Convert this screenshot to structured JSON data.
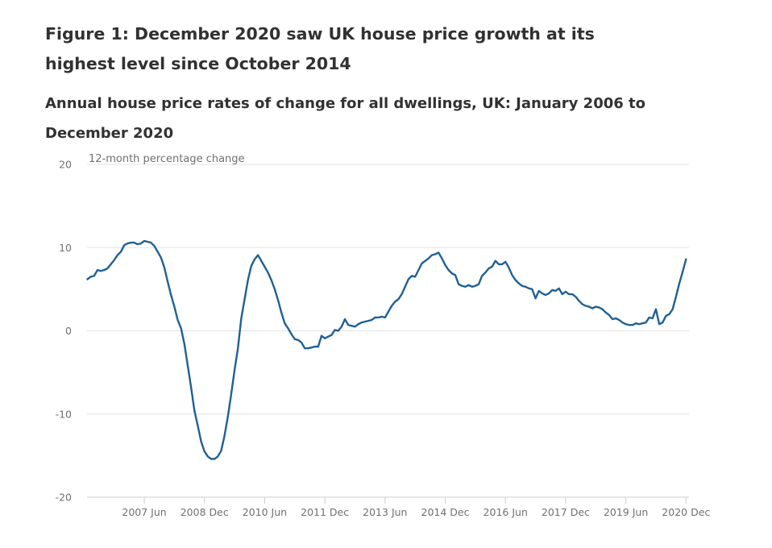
{
  "title": "Figure 1: December 2020 saw UK house price growth at its highest level since October 2014",
  "subtitle": "Annual house price rates of change for all dwellings, UK: January 2006 to December 2020",
  "colors": {
    "line": "#206095",
    "grid": "#e2e2e3",
    "axis": "#ccccd6",
    "text": "#323132",
    "tick_text": "#707071"
  },
  "chart_data": {
    "type": "line",
    "title": "Annual house price rates of change for all dwellings, UK: January 2006 to December 2020",
    "xlabel": "",
    "ylabel": "12-month percentage change",
    "x_start": "2006 Jan",
    "x_end": "2020 Dec",
    "x_frequency": "monthly",
    "x_ticks": [
      "2007 Jun",
      "2008 Dec",
      "2010 Jun",
      "2011 Dec",
      "2013 Jun",
      "2014 Dec",
      "2016 Jun",
      "2017 Dec",
      "2019 Jun",
      "2020 Dec"
    ],
    "x_tick_month_index": [
      17,
      35,
      53,
      71,
      89,
      107,
      125,
      143,
      161,
      179
    ],
    "y_ticks": [
      20,
      10,
      0,
      -10,
      -20
    ],
    "y_tick_labels": [
      "20",
      "10",
      "0",
      "-10",
      "-20"
    ],
    "ylim": [
      -20,
      20
    ],
    "grid": true,
    "legend": "none",
    "series": [
      {
        "name": "UK annual house price rate of change",
        "values": [
          6.2,
          6.5,
          6.6,
          7.3,
          7.2,
          7.3,
          7.5,
          8.0,
          8.5,
          9.1,
          9.5,
          10.3,
          10.5,
          10.6,
          10.6,
          10.4,
          10.5,
          10.8,
          10.7,
          10.6,
          10.2,
          9.5,
          8.8,
          7.6,
          5.9,
          4.3,
          2.9,
          1.3,
          0.3,
          -1.6,
          -4.2,
          -6.8,
          -9.6,
          -11.4,
          -13.3,
          -14.5,
          -15.1,
          -15.4,
          -15.4,
          -15.1,
          -14.4,
          -12.6,
          -10.3,
          -7.6,
          -4.7,
          -2.1,
          1.5,
          3.8,
          6.1,
          7.8,
          8.6,
          9.1,
          8.4,
          7.7,
          7.0,
          6.1,
          5.0,
          3.7,
          2.2,
          0.9,
          0.3,
          -0.4,
          -1.0,
          -1.1,
          -1.4,
          -2.1,
          -2.1,
          -2.0,
          -1.9,
          -1.9,
          -0.6,
          -0.9,
          -0.7,
          -0.5,
          0.1,
          0.0,
          0.5,
          1.4,
          0.7,
          0.6,
          0.5,
          0.8,
          1.0,
          1.1,
          1.2,
          1.3,
          1.6,
          1.6,
          1.7,
          1.6,
          2.3,
          3.0,
          3.5,
          3.8,
          4.4,
          5.3,
          6.2,
          6.6,
          6.5,
          7.3,
          8.1,
          8.4,
          8.7,
          9.1,
          9.2,
          9.4,
          8.7,
          7.9,
          7.3,
          6.9,
          6.7,
          5.6,
          5.4,
          5.3,
          5.5,
          5.3,
          5.4,
          5.6,
          6.6,
          7.0,
          7.5,
          7.7,
          8.4,
          8.0,
          8.0,
          8.3,
          7.6,
          6.7,
          6.1,
          5.7,
          5.4,
          5.3,
          5.1,
          5.0,
          3.9,
          4.8,
          4.5,
          4.3,
          4.5,
          4.9,
          4.8,
          5.1,
          4.4,
          4.7,
          4.4,
          4.4,
          4.1,
          3.6,
          3.2,
          3.0,
          2.9,
          2.7,
          2.9,
          2.8,
          2.6,
          2.2,
          1.9,
          1.4,
          1.5,
          1.3,
          1.0,
          0.8,
          0.7,
          0.7,
          0.9,
          0.8,
          0.9,
          1.0,
          1.6,
          1.5,
          2.6,
          0.8,
          1.0,
          1.8,
          2.0,
          2.6,
          4.1,
          5.7,
          7.1,
          8.6
        ]
      }
    ]
  }
}
